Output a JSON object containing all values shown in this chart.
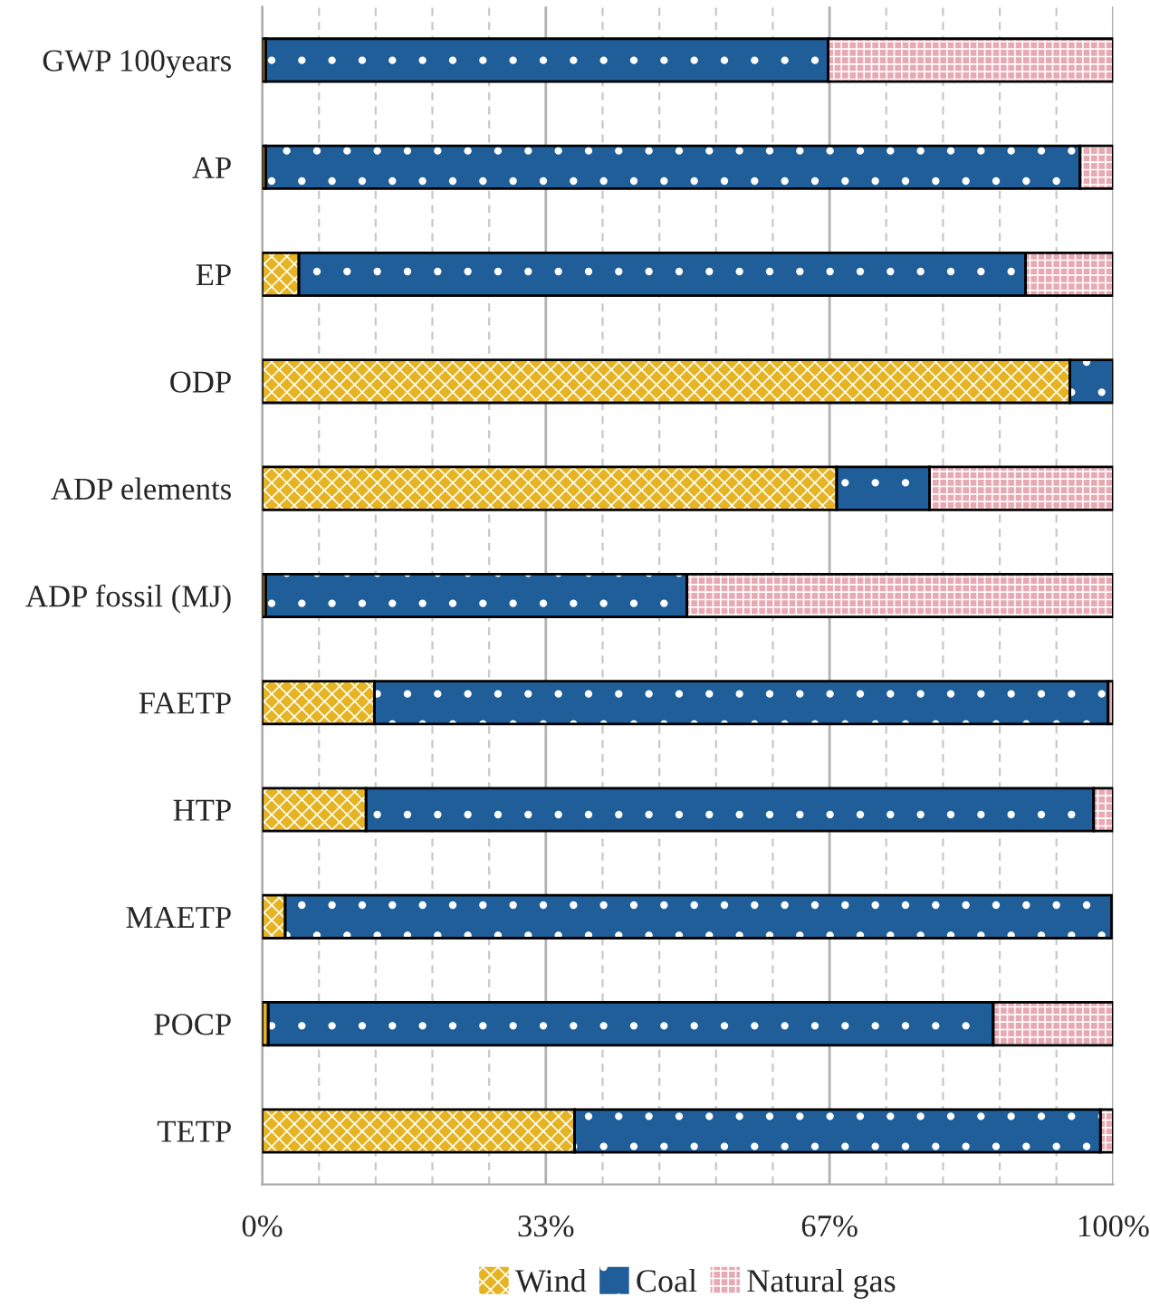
{
  "chart_data": {
    "type": "bar",
    "orientation": "horizontal",
    "stacked": true,
    "categories": [
      "GWP 100years",
      "AP",
      "EP",
      "ODP",
      "ADP elements",
      "ADP fossil (MJ)",
      "FAETP",
      "HTP",
      "MAETP",
      "POCP",
      "TETP"
    ],
    "series": [
      {
        "name": "Wind",
        "color": "#e6b422",
        "values": [
          0.4,
          0.4,
          4.3,
          94.9,
          67.5,
          0.4,
          13.2,
          12.2,
          2.7,
          0.7,
          36.7
        ]
      },
      {
        "name": "Coal",
        "color": "#1f5e98",
        "values": [
          66.1,
          95.7,
          85.4,
          5.1,
          10.9,
          49.5,
          86.2,
          85.5,
          97.1,
          85.2,
          61.8
        ]
      },
      {
        "name": "Natural gas",
        "color": "#e8a9b3",
        "values": [
          33.5,
          3.9,
          10.3,
          null,
          21.6,
          50.1,
          0.6,
          2.3,
          null,
          14.1,
          1.5
        ]
      }
    ],
    "xlim": [
      0,
      100
    ],
    "xticks": [
      {
        "value": 0,
        "label": "0%"
      },
      {
        "value": 6.67,
        "label": null
      },
      {
        "value": 13.33,
        "label": null
      },
      {
        "value": 20,
        "label": null
      },
      {
        "value": 26.67,
        "label": null
      },
      {
        "value": 33.33,
        "label": "33%"
      },
      {
        "value": 40,
        "label": null
      },
      {
        "value": 46.67,
        "label": null
      },
      {
        "value": 53.33,
        "label": null
      },
      {
        "value": 60,
        "label": null
      },
      {
        "value": 66.67,
        "label": "67%"
      },
      {
        "value": 73.33,
        "label": null
      },
      {
        "value": 80,
        "label": null
      },
      {
        "value": 86.67,
        "label": null
      },
      {
        "value": 93.33,
        "label": null
      },
      {
        "value": 100,
        "label": "100%"
      }
    ],
    "grid": true,
    "legend": "bottom"
  }
}
